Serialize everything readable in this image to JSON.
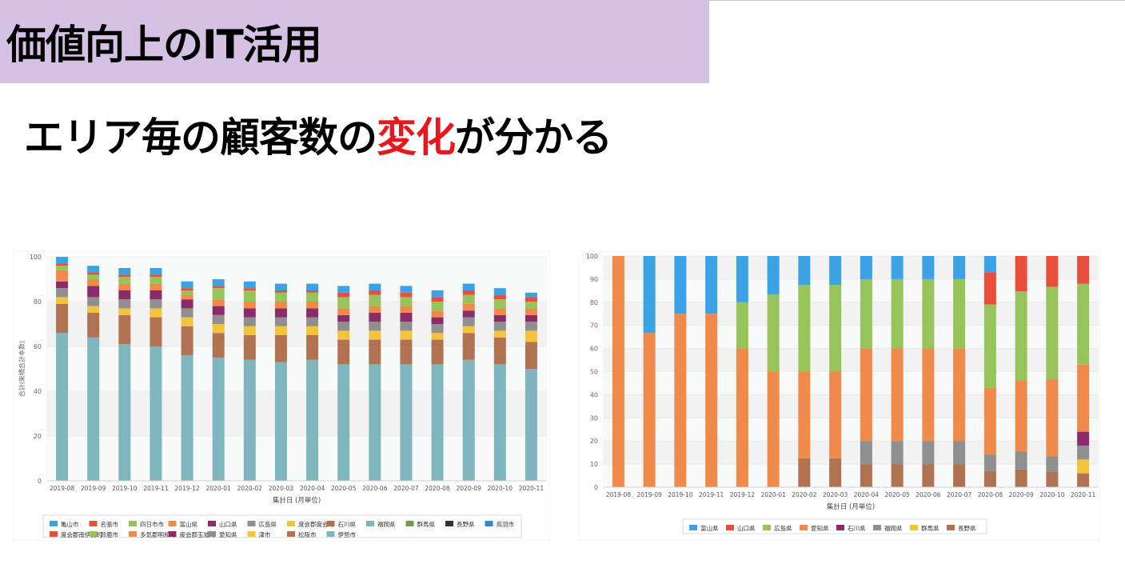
{
  "slide": {
    "title": "価値向上のIT活用",
    "subtitle_pre": "エリア毎の顧客数の",
    "subtitle_highlight": "変化",
    "subtitle_post": "が分かる"
  },
  "chart_data": [
    {
      "type": "bar",
      "stacked": true,
      "title": "",
      "xlabel": "集計日 (月単位)",
      "ylabel": "合計(架橋合計本数)",
      "ylim": [
        0,
        100
      ],
      "yticks": [
        0,
        20,
        40,
        60,
        80,
        100
      ],
      "grid": true,
      "legend_position": "bottom",
      "categories": [
        "2019-08",
        "2019-09",
        "2019-10",
        "2019-11",
        "2019-12",
        "2020-01",
        "2020-02",
        "2020-03",
        "2020-04",
        "2020-05",
        "2020-06",
        "2020-07",
        "2020-08",
        "2020-09",
        "2020-10",
        "2020-11"
      ],
      "series": [
        {
          "name": "伊勢市",
          "color": "#7fb6bd",
          "values": [
            66,
            64,
            61,
            60,
            56,
            55,
            54,
            53,
            54,
            52,
            52,
            52,
            52,
            54,
            52,
            50
          ]
        },
        {
          "name": "松阪市",
          "color": "#b07250",
          "values": [
            13,
            11,
            13,
            13,
            13,
            11,
            11,
            12,
            11,
            11,
            11,
            11,
            11,
            12,
            12,
            12
          ]
        },
        {
          "name": "津市",
          "color": "#f3c33b",
          "values": [
            3,
            3,
            3,
            4,
            4,
            4,
            4,
            4,
            4,
            4,
            4,
            4,
            3,
            3,
            3,
            5
          ]
        },
        {
          "name": "愛知県",
          "color": "#8f8f8f",
          "values": [
            4,
            4,
            4,
            4,
            4,
            4,
            4,
            4,
            4,
            4,
            4,
            4,
            4,
            4,
            4,
            4
          ]
        },
        {
          "name": "度会郡玉城町",
          "color": "#8b2b6a",
          "values": [
            3,
            5,
            4,
            4,
            4,
            4,
            4,
            4,
            4,
            3,
            4,
            4,
            3,
            3,
            3,
            3
          ]
        },
        {
          "name": "多気郡明和町",
          "color": "#f08a4b",
          "values": [
            5,
            3,
            3,
            3,
            2,
            3,
            3,
            3,
            3,
            3,
            3,
            3,
            3,
            3,
            3,
            3
          ]
        },
        {
          "name": "鈴鹿市",
          "color": "#97c45a",
          "values": [
            2,
            2,
            3,
            3,
            2,
            5,
            5,
            4,
            4,
            5,
            5,
            4,
            4,
            4,
            4,
            3
          ]
        },
        {
          "name": "度会郡南伊勢町",
          "color": "#e94e3d",
          "values": [
            1,
            1,
            1,
            1,
            1,
            1,
            1,
            1,
            1,
            2,
            2,
            2,
            2,
            2,
            2,
            2
          ]
        },
        {
          "name": "鳥羽市",
          "color": "#3ba3e5",
          "values": [
            3,
            3,
            3,
            3,
            3,
            3,
            3,
            3,
            3,
            3,
            3,
            3,
            3,
            3,
            3,
            2
          ]
        }
      ],
      "legend": [
        "亀山市",
        "名張市",
        "四日市市",
        "富山県",
        "山口県",
        "広島県",
        "度会郡度会町",
        "石川県",
        "福岡県",
        "群馬県",
        "長野県",
        "鳥羽市",
        "度会郡南伊勢町",
        "鈴鹿市",
        "多気郡明和町",
        "度会郡玉城町",
        "愛知県",
        "津市",
        "松阪市",
        "伊勢市"
      ],
      "legend_colors": [
        "#3ba3e5",
        "#e94e3d",
        "#97c45a",
        "#f08a4b",
        "#8b2b6a",
        "#8f8f8f",
        "#f3c33b",
        "#b07250",
        "#7fb6bd",
        "#6e9a52",
        "#333333",
        "#2f86d6",
        "#e94e3d",
        "#97c45a",
        "#f08a4b",
        "#8b2b6a",
        "#8f8f8f",
        "#f3c33b",
        "#b07250",
        "#7fb6bd"
      ]
    },
    {
      "type": "bar",
      "stacked": true,
      "title": "",
      "xlabel": "集計日 (月単位)",
      "ylabel": "",
      "ylim": [
        0,
        100
      ],
      "yticks": [
        0,
        10,
        20,
        30,
        40,
        50,
        60,
        70,
        80,
        90,
        100
      ],
      "grid": true,
      "legend_position": "bottom",
      "categories": [
        "2019-08",
        "2019-09",
        "2019-10",
        "2019-11",
        "2019-12",
        "2020-01",
        "2020-02",
        "2020-03",
        "2020-04",
        "2020-05",
        "2020-06",
        "2020-07",
        "2020-08",
        "2020-09",
        "2020-10",
        "2020-11"
      ],
      "series": [
        {
          "name": "長野県",
          "color": "#b07250",
          "values": [
            0,
            0,
            0,
            0,
            0,
            0,
            12.5,
            12.5,
            10,
            10,
            10,
            10,
            7,
            7.7,
            6.7,
            6
          ]
        },
        {
          "name": "群馬県",
          "color": "#f3c33b",
          "values": [
            0,
            0,
            0,
            0,
            0,
            0,
            0,
            0,
            0,
            0,
            0,
            0,
            0,
            0,
            0,
            6
          ]
        },
        {
          "name": "福岡県",
          "color": "#8f8f8f",
          "values": [
            0,
            0,
            0,
            0,
            0,
            0,
            0,
            0,
            10,
            10,
            10,
            10,
            7,
            7.7,
            6.7,
            6
          ]
        },
        {
          "name": "石川県",
          "color": "#8b2b6a",
          "values": [
            0,
            0,
            0,
            0,
            0,
            0,
            0,
            0,
            0,
            0,
            0,
            0,
            0,
            0,
            0,
            6
          ]
        },
        {
          "name": "愛知県",
          "color": "#f08a4b",
          "values": [
            100,
            66.7,
            75,
            75,
            60,
            50,
            37.5,
            37.5,
            40,
            40,
            40,
            40,
            29,
            30.8,
            33.3,
            29
          ]
        },
        {
          "name": "広島県",
          "color": "#97c45a",
          "values": [
            0,
            0,
            0,
            0,
            20,
            33.3,
            37.5,
            37.5,
            30,
            30,
            30,
            30,
            36,
            38.5,
            40,
            35
          ]
        },
        {
          "name": "山口県",
          "color": "#e94e3d",
          "values": [
            0,
            0,
            0,
            0,
            0,
            0,
            0,
            0,
            0,
            0,
            0,
            0,
            14,
            15.3,
            13.3,
            12
          ]
        },
        {
          "name": "富山県",
          "color": "#3ba3e5",
          "values": [
            0,
            33.3,
            25,
            25,
            20,
            16.7,
            12.5,
            12.5,
            10,
            10,
            10,
            10,
            7,
            0,
            0,
            0
          ]
        }
      ],
      "legend": [
        "富山県",
        "山口県",
        "広島県",
        "愛知県",
        "石川県",
        "福岡県",
        "群馬県",
        "長野県"
      ],
      "legend_colors": [
        "#3ba3e5",
        "#e94e3d",
        "#97c45a",
        "#f08a4b",
        "#8b2b6a",
        "#8f8f8f",
        "#f3c33b",
        "#b07250"
      ]
    }
  ]
}
